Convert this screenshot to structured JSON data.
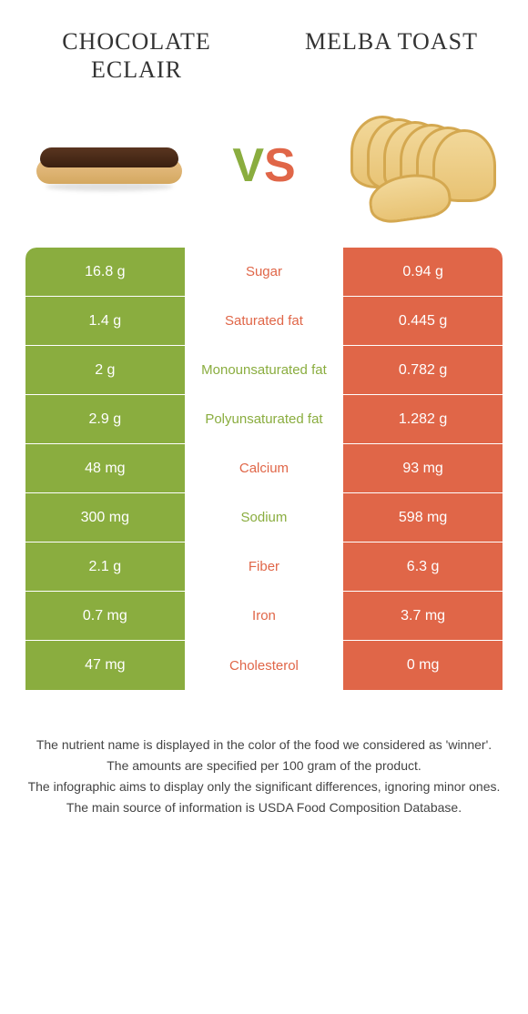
{
  "colors": {
    "left": "#8aad3f",
    "right": "#e06648",
    "bg": "#ffffff"
  },
  "titles": {
    "left": "CHOCOLATE ECLAIR",
    "right": "MELBA TOAST"
  },
  "vs": {
    "v": "V",
    "s": "S"
  },
  "rows": [
    {
      "left": "16.8 g",
      "label": "Sugar",
      "right": "0.94 g",
      "winner": "right"
    },
    {
      "left": "1.4 g",
      "label": "Saturated fat",
      "right": "0.445 g",
      "winner": "right"
    },
    {
      "left": "2 g",
      "label": "Monounsaturated fat",
      "right": "0.782 g",
      "winner": "left"
    },
    {
      "left": "2.9 g",
      "label": "Polyunsaturated fat",
      "right": "1.282 g",
      "winner": "left"
    },
    {
      "left": "48 mg",
      "label": "Calcium",
      "right": "93 mg",
      "winner": "right"
    },
    {
      "left": "300 mg",
      "label": "Sodium",
      "right": "598 mg",
      "winner": "left"
    },
    {
      "left": "2.1 g",
      "label": "Fiber",
      "right": "6.3 g",
      "winner": "right"
    },
    {
      "left": "0.7 mg",
      "label": "Iron",
      "right": "3.7 mg",
      "winner": "right"
    },
    {
      "left": "47 mg",
      "label": "Cholesterol",
      "right": "0 mg",
      "winner": "right"
    }
  ],
  "footnotes": [
    "The nutrient name is displayed in the color of the food we considered as 'winner'.",
    "The amounts are specified per 100 gram of the product.",
    "The infographic aims to display only the significant differences, ignoring minor ones.",
    "The main source of information is USDA Food Composition Database."
  ]
}
